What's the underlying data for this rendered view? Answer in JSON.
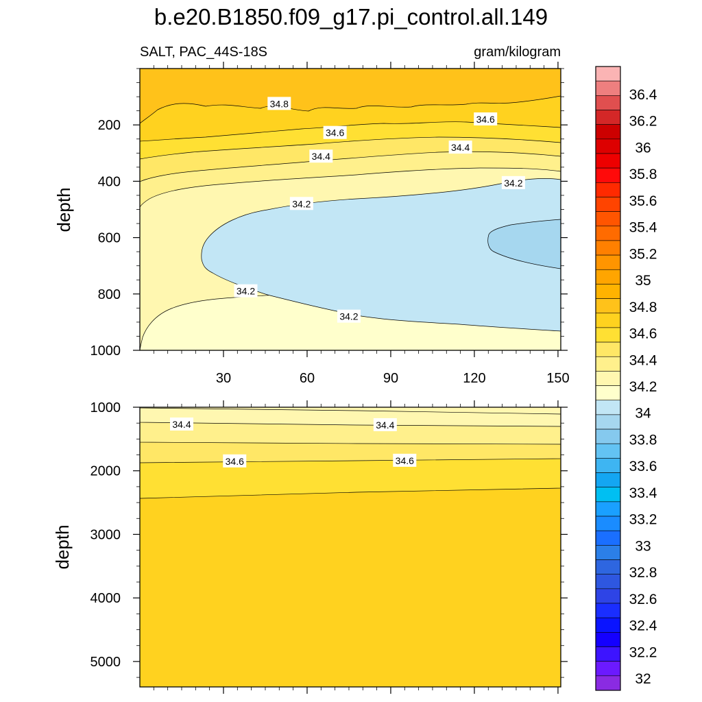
{
  "chart_data": {
    "type": "contour",
    "title": "b.e20.B1850.f09_g17.pi_control.all.149",
    "left_subtitle": "SALT, PAC_44S-18S",
    "right_subtitle": "gram/kilogram",
    "x_ticks": [
      "30",
      "60",
      "90",
      "120",
      "150"
    ],
    "x_tick_values": [
      30,
      60,
      90,
      120,
      150
    ],
    "xlim": [
      0,
      151
    ],
    "panels": [
      {
        "ylabel": "depth",
        "ylim": [
          1000,
          0
        ],
        "y_ticks": [
          "200",
          "400",
          "600",
          "800",
          "1000"
        ],
        "y_tick_values": [
          200,
          400,
          600,
          800,
          1000
        ],
        "contour_labels": [
          {
            "text": "34.8",
            "x": 50,
            "y": 125
          },
          {
            "text": "34.6",
            "x": 70,
            "y": 228
          },
          {
            "text": "34.6",
            "x": 124,
            "y": 180
          },
          {
            "text": "34.4",
            "x": 65,
            "y": 312
          },
          {
            "text": "34.4",
            "x": 115,
            "y": 280
          },
          {
            "text": "34.2",
            "x": 58,
            "y": 480
          },
          {
            "text": "34.2",
            "x": 134,
            "y": 406
          },
          {
            "text": "34.2",
            "x": 38,
            "y": 790
          },
          {
            "text": "34.2",
            "x": 75,
            "y": 880
          }
        ]
      },
      {
        "ylabel": "depth",
        "ylim": [
          5400,
          1000
        ],
        "y_ticks": [
          "1000",
          "2000",
          "3000",
          "4000",
          "5000"
        ],
        "y_tick_values": [
          1000,
          2000,
          3000,
          4000,
          5000
        ],
        "contour_labels": [
          {
            "text": "34.4",
            "x": 15,
            "y": 1270
          },
          {
            "text": "34.4",
            "x": 88,
            "y": 1280
          },
          {
            "text": "34.6",
            "x": 34,
            "y": 1850
          },
          {
            "text": "34.6",
            "x": 95,
            "y": 1840
          }
        ]
      }
    ],
    "colorbar": {
      "labels": [
        "36.4",
        "36.2",
        "36",
        "35.8",
        "35.6",
        "35.4",
        "35.2",
        "35",
        "34.8",
        "34.6",
        "34.4",
        "34.2",
        "34",
        "33.8",
        "33.6",
        "33.4",
        "33.2",
        "33",
        "32.8",
        "32.6",
        "32.4",
        "32.2",
        "32"
      ],
      "colors_top_to_bottom": [
        "#fbb4b4",
        "#ee7f7f",
        "#e04f4f",
        "#d42727",
        "#cc0000",
        "#dd0000",
        "#ee0000",
        "#ff0a0a",
        "#ff2a00",
        "#ff4400",
        "#ff5500",
        "#ff6b00",
        "#ff8000",
        "#ff9500",
        "#ffa500",
        "#ffb300",
        "#ffc21a",
        "#ffd21f",
        "#ffe033",
        "#ffe766",
        "#fff08c",
        "#fff7b0",
        "#ffffcc",
        "#c2e6f5",
        "#a6d7ef",
        "#85c9ee",
        "#63c3f3",
        "#3eb5f2",
        "#14a6f2",
        "#00bff2",
        "#1aa0ff",
        "#1a8cff",
        "#1a6fff",
        "#2b7fe8",
        "#2e66e0",
        "#2e57e0",
        "#2e44e6",
        "#1a2eff",
        "#0a14ff",
        "#1400ff",
        "#3d14ff",
        "#6b1aff",
        "#8a2be2"
      ]
    }
  }
}
